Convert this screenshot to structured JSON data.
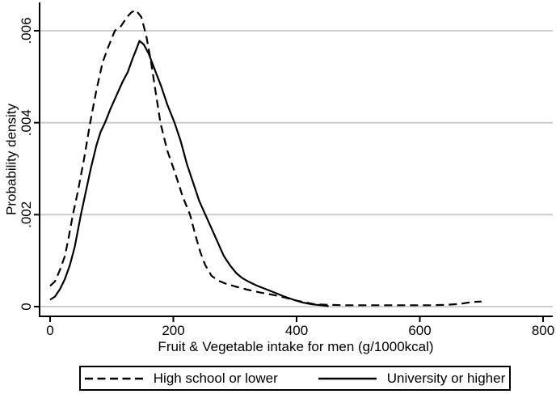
{
  "figure": {
    "background": "#ffffff",
    "text_color": "#000000"
  },
  "chart_data": {
    "type": "line",
    "title": "",
    "xlabel": "Fruit & Vegetable intake for men (g/1000kcal)",
    "ylabel": "Probability density",
    "xlim": [
      0,
      800
    ],
    "ylim": [
      0,
      0.0065
    ],
    "xticks": [
      0,
      200,
      400,
      600,
      800
    ],
    "xtick_labels": [
      "0",
      "200",
      "400",
      "600",
      "800"
    ],
    "yticks": [
      0,
      0.002,
      0.004,
      0.006
    ],
    "ytick_labels": [
      "0",
      ".002",
      ".004",
      ".006"
    ],
    "grid": "horizontal",
    "grid_color": "#c8c8c8",
    "axis_color": "#000000",
    "line_color": "#000000",
    "legend_position": "bottom",
    "series": [
      {
        "name": "High school or lower",
        "style": "dashed",
        "points": [
          [
            0,
            0.00045
          ],
          [
            8,
            0.00055
          ],
          [
            16,
            0.0008
          ],
          [
            24,
            0.0011
          ],
          [
            30,
            0.0015
          ],
          [
            37,
            0.002
          ],
          [
            45,
            0.0025
          ],
          [
            55,
            0.0032
          ],
          [
            65,
            0.004
          ],
          [
            75,
            0.0047
          ],
          [
            85,
            0.0053
          ],
          [
            93,
            0.0056
          ],
          [
            105,
            0.006
          ],
          [
            115,
            0.0061
          ],
          [
            125,
            0.0063
          ],
          [
            132,
            0.0064
          ],
          [
            139,
            0.00645
          ],
          [
            148,
            0.0063
          ],
          [
            156,
            0.0059
          ],
          [
            164,
            0.0053
          ],
          [
            172,
            0.0046
          ],
          [
            179,
            0.004
          ],
          [
            190,
            0.0034
          ],
          [
            203,
            0.0029
          ],
          [
            215,
            0.0024
          ],
          [
            227,
            0.002
          ],
          [
            236,
            0.00155
          ],
          [
            244,
            0.00118
          ],
          [
            252,
            0.0009
          ],
          [
            262,
            0.00067
          ],
          [
            272,
            0.00057
          ],
          [
            285,
            0.0005
          ],
          [
            300,
            0.00044
          ],
          [
            320,
            0.00037
          ],
          [
            340,
            0.00031
          ],
          [
            360,
            0.00026
          ],
          [
            380,
            0.0002
          ],
          [
            400,
            0.00013
          ],
          [
            415,
            9e-05
          ],
          [
            430,
            5e-05
          ],
          [
            450,
            4e-05
          ],
          [
            475,
            3e-05
          ],
          [
            510,
            3e-05
          ],
          [
            550,
            3e-05
          ],
          [
            590,
            3e-05
          ],
          [
            620,
            3e-05
          ],
          [
            645,
            4e-05
          ],
          [
            665,
            6e-05
          ],
          [
            685,
            0.0001
          ],
          [
            700,
            0.00011
          ]
        ]
      },
      {
        "name": "University or higher",
        "style": "solid",
        "points": [
          [
            0,
            0.00015
          ],
          [
            8,
            0.00022
          ],
          [
            16,
            0.00038
          ],
          [
            24,
            0.0006
          ],
          [
            32,
            0.0009
          ],
          [
            40,
            0.0013
          ],
          [
            50,
            0.002
          ],
          [
            58,
            0.0025
          ],
          [
            66,
            0.003
          ],
          [
            75,
            0.0035
          ],
          [
            82,
            0.0038
          ],
          [
            89,
            0.004
          ],
          [
            98,
            0.0043
          ],
          [
            108,
            0.0046
          ],
          [
            118,
            0.0049
          ],
          [
            126,
            0.0051
          ],
          [
            134,
            0.0054
          ],
          [
            140,
            0.0056
          ],
          [
            145,
            0.00578
          ],
          [
            152,
            0.0057
          ],
          [
            160,
            0.0055
          ],
          [
            170,
            0.00515
          ],
          [
            180,
            0.0048
          ],
          [
            190,
            0.0044
          ],
          [
            202,
            0.004
          ],
          [
            212,
            0.0036
          ],
          [
            222,
            0.0031
          ],
          [
            232,
            0.0027
          ],
          [
            242,
            0.0023
          ],
          [
            252,
            0.002
          ],
          [
            262,
            0.0017
          ],
          [
            272,
            0.0014
          ],
          [
            282,
            0.0011
          ],
          [
            292,
            0.0009
          ],
          [
            302,
            0.00073
          ],
          [
            312,
            0.00062
          ],
          [
            321,
            0.00055
          ],
          [
            335,
            0.00046
          ],
          [
            350,
            0.00038
          ],
          [
            365,
            0.0003
          ],
          [
            380,
            0.00022
          ],
          [
            395,
            0.00015
          ],
          [
            410,
            9e-05
          ],
          [
            425,
            5e-05
          ],
          [
            440,
            3e-05
          ],
          [
            452,
            1e-05
          ]
        ]
      }
    ]
  }
}
